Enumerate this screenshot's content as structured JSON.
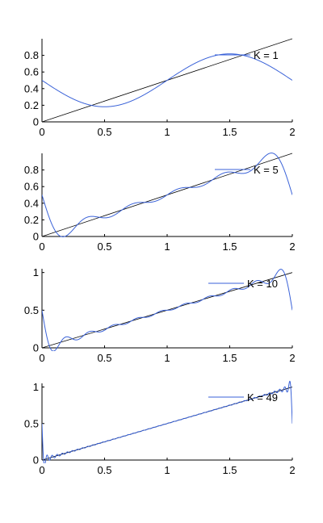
{
  "chart_data": [
    {
      "type": "line",
      "terms": 1,
      "xlim": [
        0,
        2
      ],
      "ylim": [
        0,
        1
      ],
      "xticks": [
        "0",
        "0.5",
        "1",
        "1.5",
        "2"
      ],
      "yticks": [
        "0",
        "0.2",
        "0.4",
        "0.6",
        "0.8"
      ],
      "legend": "top-right",
      "series": [
        {
          "name": "K = 1",
          "color": "#3a62d8",
          "type": "fourier-approximation"
        },
        {
          "color": "#000000",
          "type": "reference",
          "x": [
            0,
            2
          ],
          "y": [
            0,
            1
          ]
        }
      ]
    },
    {
      "type": "line",
      "terms": 5,
      "xlim": [
        0,
        2
      ],
      "ylim": [
        0,
        1
      ],
      "xticks": [
        "0",
        "0.5",
        "1",
        "1.5",
        "2"
      ],
      "yticks": [
        "0",
        "0.2",
        "0.4",
        "0.6",
        "0.8"
      ],
      "legend": "top-right",
      "series": [
        {
          "name": "K = 5",
          "color": "#3a62d8",
          "type": "fourier-approximation"
        },
        {
          "color": "#000000",
          "type": "reference",
          "x": [
            0,
            2
          ],
          "y": [
            0,
            1
          ]
        }
      ]
    },
    {
      "type": "line",
      "terms": 10,
      "xlim": [
        0,
        2
      ],
      "ylim": [
        0,
        1.05
      ],
      "xticks": [
        "0",
        "0.5",
        "1",
        "1.5",
        "2"
      ],
      "yticks": [
        "0",
        "0.5",
        "1"
      ],
      "legend": "top-right",
      "series": [
        {
          "name": "K = 10",
          "color": "#3a62d8",
          "type": "fourier-approximation"
        },
        {
          "color": "#000000",
          "type": "reference",
          "x": [
            0,
            2
          ],
          "y": [
            0,
            1
          ]
        }
      ]
    },
    {
      "type": "line",
      "terms": 49,
      "xlim": [
        0,
        2
      ],
      "ylim": [
        0,
        1.05
      ],
      "xticks": [
        "0",
        "0.5",
        "1",
        "1.5",
        "2"
      ],
      "yticks": [
        "0",
        "0.5",
        "1"
      ],
      "legend": "top-right",
      "series": [
        {
          "name": "K = 49",
          "color": "#3a62d8",
          "type": "fourier-approximation"
        },
        {
          "color": "#000000",
          "type": "reference",
          "x": [
            0,
            2
          ],
          "y": [
            0,
            1
          ]
        }
      ]
    }
  ]
}
